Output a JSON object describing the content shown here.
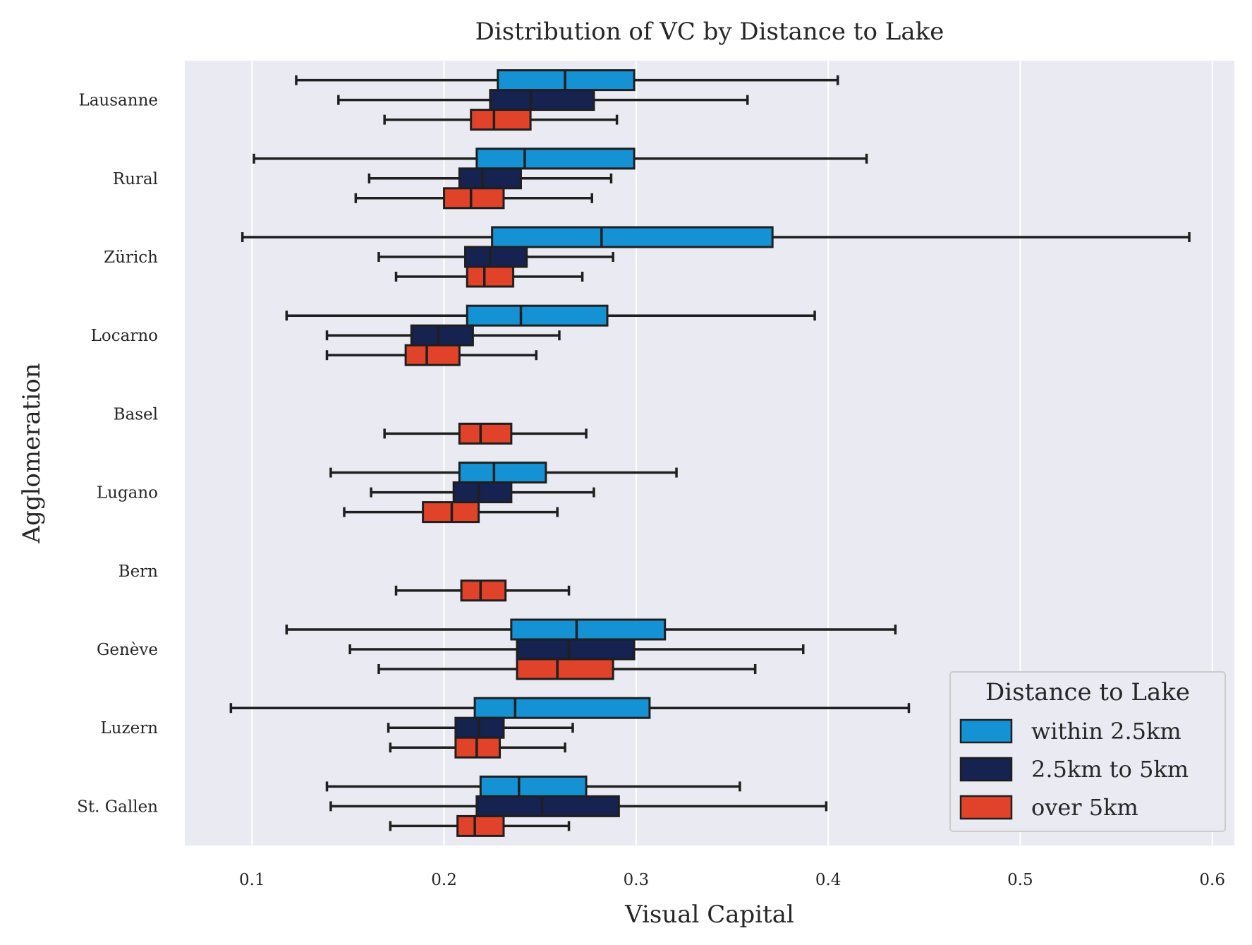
{
  "chart_data": {
    "type": "boxplot",
    "orientation": "horizontal",
    "title": "Distribution of VC by Distance to Lake",
    "xlabel": "Visual Capital",
    "ylabel": "Agglomeration",
    "xlim": [
      0.065,
      0.6115
    ],
    "xticks": [
      0.1,
      0.2,
      0.3,
      0.4,
      0.5,
      0.6
    ],
    "xtick_labels": [
      "0.1",
      "0.2",
      "0.3",
      "0.4",
      "0.5",
      "0.6"
    ],
    "grid": true,
    "legend": {
      "title": "Distance to Lake",
      "placement": "lower-right"
    },
    "categories": [
      "Lausanne",
      "Rural",
      "Zürich",
      "Locarno",
      "Basel",
      "Lugano",
      "Bern",
      "Genève",
      "Luzern",
      "St. Gallen"
    ],
    "series": [
      {
        "name": "within 2.5km",
        "color": "#1592d4",
        "boxes": [
          {
            "whislo": 0.123,
            "q1": 0.228,
            "med": 0.263,
            "q3": 0.299,
            "whishi": 0.405
          },
          {
            "whislo": 0.101,
            "q1": 0.217,
            "med": 0.242,
            "q3": 0.299,
            "whishi": 0.42
          },
          {
            "whislo": 0.095,
            "q1": 0.225,
            "med": 0.282,
            "q3": 0.371,
            "whishi": 0.588
          },
          {
            "whislo": 0.118,
            "q1": 0.212,
            "med": 0.24,
            "q3": 0.285,
            "whishi": 0.393
          },
          null,
          {
            "whislo": 0.141,
            "q1": 0.208,
            "med": 0.226,
            "q3": 0.253,
            "whishi": 0.321
          },
          null,
          {
            "whislo": 0.118,
            "q1": 0.235,
            "med": 0.269,
            "q3": 0.315,
            "whishi": 0.435
          },
          {
            "whislo": 0.089,
            "q1": 0.216,
            "med": 0.237,
            "q3": 0.307,
            "whishi": 0.442
          },
          {
            "whislo": 0.139,
            "q1": 0.219,
            "med": 0.239,
            "q3": 0.274,
            "whishi": 0.354
          }
        ]
      },
      {
        "name": "2.5km to 5km",
        "color": "#16224f",
        "boxes": [
          {
            "whislo": 0.145,
            "q1": 0.224,
            "med": 0.245,
            "q3": 0.278,
            "whishi": 0.358
          },
          {
            "whislo": 0.161,
            "q1": 0.208,
            "med": 0.22,
            "q3": 0.24,
            "whishi": 0.287
          },
          {
            "whislo": 0.166,
            "q1": 0.211,
            "med": 0.224,
            "q3": 0.243,
            "whishi": 0.288
          },
          {
            "whislo": 0.139,
            "q1": 0.183,
            "med": 0.197,
            "q3": 0.215,
            "whishi": 0.26
          },
          null,
          {
            "whislo": 0.162,
            "q1": 0.205,
            "med": 0.218,
            "q3": 0.235,
            "whishi": 0.278
          },
          null,
          {
            "whislo": 0.151,
            "q1": 0.238,
            "med": 0.265,
            "q3": 0.299,
            "whishi": 0.387
          },
          {
            "whislo": 0.171,
            "q1": 0.206,
            "med": 0.218,
            "q3": 0.231,
            "whishi": 0.267
          },
          {
            "whislo": 0.141,
            "q1": 0.217,
            "med": 0.251,
            "q3": 0.291,
            "whishi": 0.399
          }
        ]
      },
      {
        "name": "over 5km",
        "color": "#e0432a",
        "boxes": [
          {
            "whislo": 0.169,
            "q1": 0.214,
            "med": 0.226,
            "q3": 0.245,
            "whishi": 0.29
          },
          {
            "whislo": 0.154,
            "q1": 0.2,
            "med": 0.214,
            "q3": 0.231,
            "whishi": 0.277
          },
          {
            "whislo": 0.175,
            "q1": 0.212,
            "med": 0.221,
            "q3": 0.236,
            "whishi": 0.272
          },
          {
            "whislo": 0.139,
            "q1": 0.18,
            "med": 0.191,
            "q3": 0.208,
            "whishi": 0.248
          },
          {
            "whislo": 0.169,
            "q1": 0.208,
            "med": 0.219,
            "q3": 0.235,
            "whishi": 0.274
          },
          {
            "whislo": 0.148,
            "q1": 0.189,
            "med": 0.204,
            "q3": 0.218,
            "whishi": 0.259
          },
          {
            "whislo": 0.175,
            "q1": 0.209,
            "med": 0.219,
            "q3": 0.232,
            "whishi": 0.265
          },
          {
            "whislo": 0.166,
            "q1": 0.238,
            "med": 0.259,
            "q3": 0.288,
            "whishi": 0.362
          },
          {
            "whislo": 0.172,
            "q1": 0.206,
            "med": 0.217,
            "q3": 0.229,
            "whishi": 0.263
          },
          {
            "whislo": 0.172,
            "q1": 0.207,
            "med": 0.216,
            "q3": 0.231,
            "whishi": 0.265
          }
        ]
      }
    ]
  }
}
